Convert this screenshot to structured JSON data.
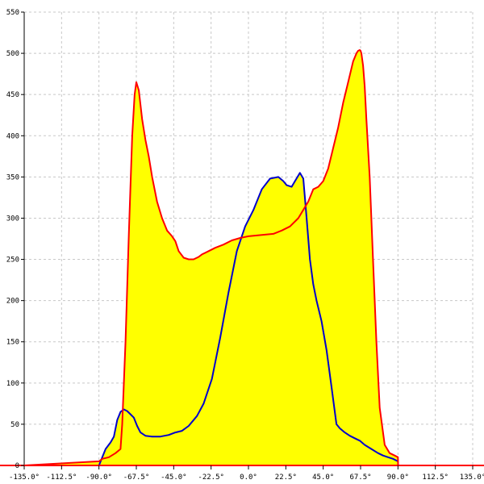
{
  "chart_data": {
    "type": "area",
    "title": "",
    "xlabel": "",
    "ylabel": "",
    "xlim": [
      -135,
      135
    ],
    "ylim": [
      0,
      550
    ],
    "grid": true,
    "x_ticks": [
      -135,
      -112.5,
      -90,
      -67.5,
      -45,
      -22.5,
      0,
      22.5,
      45,
      67.5,
      90,
      112.5,
      135
    ],
    "x_tick_labels": [
      "-135.0°",
      "-112.5°",
      "-90.0°",
      "-67.5°",
      "-45.0°",
      "-22.5°",
      "0.0°",
      "22.5°",
      "45.0°",
      "67.5°",
      "90.0°",
      "112.5°",
      "135.0°"
    ],
    "y_ticks": [
      0,
      50,
      100,
      150,
      200,
      250,
      300,
      350,
      400,
      450,
      500,
      550
    ],
    "y_tick_labels": [
      "0",
      "50",
      "100",
      "150",
      "200",
      "250",
      "300",
      "350",
      "400",
      "450",
      "500",
      "550"
    ],
    "fill_color": "#ffff00",
    "series": [
      {
        "color": "#0000cc",
        "x": [
          -90,
          -88,
          -86,
          -83,
          -81,
          -79,
          -77,
          -75,
          -73,
          -71,
          -69,
          -67,
          -65,
          -62,
          -58,
          -53,
          -48,
          -44,
          -40,
          -36,
          -31,
          -27,
          -22,
          -17,
          -12,
          -7,
          -2,
          3,
          8,
          13,
          18,
          21,
          23,
          26,
          28,
          31,
          33,
          35,
          37,
          39,
          41,
          44,
          47,
          50,
          53,
          55,
          58,
          61,
          64,
          67,
          70,
          74,
          78,
          81,
          84,
          87,
          90
        ],
        "y": [
          0,
          10,
          20,
          28,
          35,
          55,
          65,
          68,
          66,
          62,
          58,
          48,
          40,
          36,
          35,
          35,
          37,
          40,
          42,
          48,
          60,
          75,
          105,
          155,
          210,
          260,
          290,
          310,
          335,
          348,
          350,
          345,
          340,
          338,
          345,
          355,
          348,
          300,
          250,
          220,
          200,
          175,
          140,
          95,
          50,
          45,
          40,
          36,
          33,
          30,
          25,
          20,
          15,
          12,
          10,
          8,
          5
        ]
      },
      {
        "color": "#ff0000",
        "x": [
          -135,
          -90,
          -88,
          -84,
          -80,
          -77,
          -76,
          -74,
          -72,
          -70,
          -68.5,
          -67.5,
          -66,
          -64,
          -62,
          -60,
          -58,
          -55,
          -52,
          -49,
          -46,
          -44,
          -42,
          -39,
          -36,
          -33,
          -30,
          -28,
          -24,
          -20,
          -15,
          -10,
          -5,
          0,
          5,
          10,
          15,
          20,
          25,
          30,
          33,
          36,
          39,
          42,
          45,
          48,
          51,
          54,
          57,
          60,
          63,
          65,
          66,
          67,
          67.5,
          68,
          69,
          70,
          71,
          73,
          75,
          77,
          79,
          82,
          85,
          88,
          90,
          90.1,
          135
        ],
        "y": [
          0,
          5,
          8,
          10,
          15,
          20,
          50,
          150,
          280,
          400,
          450,
          465,
          455,
          420,
          395,
          375,
          350,
          320,
          300,
          285,
          278,
          272,
          260,
          252,
          250,
          250,
          253,
          256,
          260,
          264,
          268,
          273,
          276,
          278,
          279,
          280,
          281,
          285,
          290,
          300,
          310,
          320,
          335,
          338,
          345,
          360,
          385,
          410,
          440,
          465,
          490,
          500,
          503,
          504,
          503,
          500,
          485,
          460,
          420,
          350,
          250,
          150,
          70,
          25,
          15,
          12,
          10,
          0,
          0
        ]
      }
    ]
  }
}
